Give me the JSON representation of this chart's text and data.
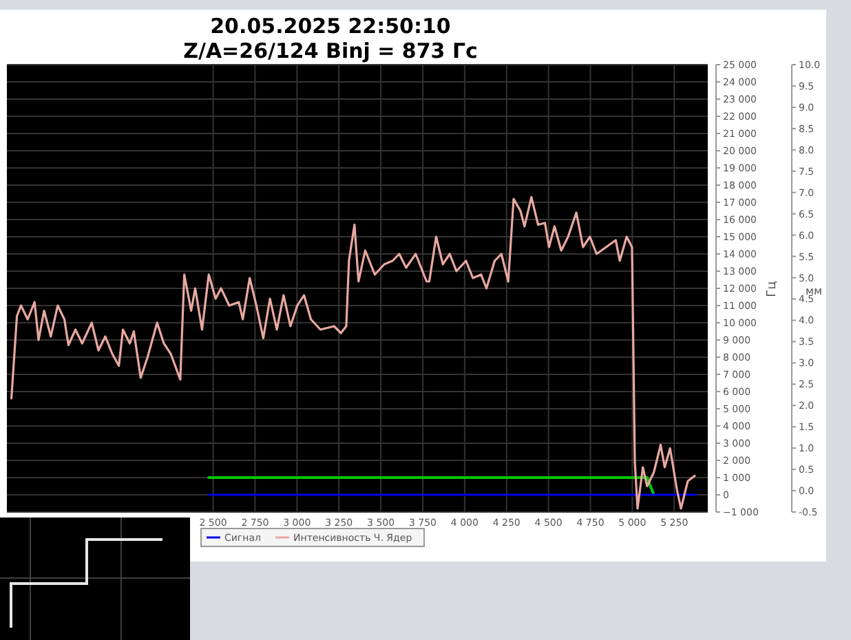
{
  "chart_data": [
    {
      "type": "line",
      "title": "20.05.2025 22:50:10",
      "subtitle": "Z/A=26/124  Binj = 873 Гс",
      "ylabel": "Гц",
      "y2label": "мм",
      "xlim": [
        1270,
        5450
      ],
      "xticks": [
        {
          "value": 2500,
          "label": "2 500"
        },
        {
          "value": 2750,
          "label": "2 750"
        },
        {
          "value": 3000,
          "label": "3 000"
        },
        {
          "value": 3250,
          "label": "3 250"
        },
        {
          "value": 3500,
          "label": "3 500"
        },
        {
          "value": 3750,
          "label": "3 750"
        },
        {
          "value": 4000,
          "label": "4 000"
        },
        {
          "value": 4250,
          "label": "4 250"
        },
        {
          "value": 4500,
          "label": "4 500"
        },
        {
          "value": 4750,
          "label": "4 750"
        },
        {
          "value": 5000,
          "label": "5 000"
        },
        {
          "value": 5250,
          "label": "5 250"
        }
      ],
      "ylim": [
        -1000,
        25000
      ],
      "yticks": [
        {
          "value": 25000,
          "label": "25 000"
        },
        {
          "value": 24000,
          "label": "24 000"
        },
        {
          "value": 23000,
          "label": "23 000"
        },
        {
          "value": 22000,
          "label": "22 000"
        },
        {
          "value": 21000,
          "label": "21 000"
        },
        {
          "value": 20000,
          "label": "20 000"
        },
        {
          "value": 19000,
          "label": "19 000"
        },
        {
          "value": 18000,
          "label": "18 000"
        },
        {
          "value": 17000,
          "label": "17 000"
        },
        {
          "value": 16000,
          "label": "16 000"
        },
        {
          "value": 15000,
          "label": "15 000"
        },
        {
          "value": 14000,
          "label": "14 000"
        },
        {
          "value": 13000,
          "label": "13 000"
        },
        {
          "value": 12000,
          "label": "12 000"
        },
        {
          "value": 11000,
          "label": "11 000"
        },
        {
          "value": 10000,
          "label": "10 000"
        },
        {
          "value": 9000,
          "label": "9 000"
        },
        {
          "value": 8000,
          "label": "8 000"
        },
        {
          "value": 7000,
          "label": "7 000"
        },
        {
          "value": 6000,
          "label": "6 000"
        },
        {
          "value": 5000,
          "label": "5 000"
        },
        {
          "value": 4000,
          "label": "4 000"
        },
        {
          "value": 3000,
          "label": "3 000"
        },
        {
          "value": 2000,
          "label": "2 000"
        },
        {
          "value": 1000,
          "label": "1 000"
        },
        0,
        {
          "value": -1000,
          "label": "−1 000"
        }
      ],
      "y2lim": [
        -0.5,
        10.0
      ],
      "y2ticks": [
        {
          "value": 10,
          "label": "10.0"
        },
        {
          "value": 9.5,
          "label": "9.5"
        },
        {
          "value": 9,
          "label": "9.0"
        },
        {
          "value": 8.5,
          "label": "8.5"
        },
        {
          "value": 8,
          "label": "8.0"
        },
        {
          "value": 7.5,
          "label": "7.5"
        },
        {
          "value": 7,
          "label": "7.0"
        },
        {
          "value": 6.5,
          "label": "6.5"
        },
        {
          "value": 6,
          "label": "6.0"
        },
        {
          "value": 5.5,
          "label": "5.5"
        },
        {
          "value": 5,
          "label": "5.0"
        },
        {
          "value": 4.5,
          "label": "4.5"
        },
        {
          "value": 4,
          "label": "4.0"
        },
        {
          "value": 3.5,
          "label": "3.5"
        },
        {
          "value": 3,
          "label": "3.0"
        },
        {
          "value": 2.5,
          "label": "2.5"
        },
        {
          "value": 2,
          "label": "2.0"
        },
        {
          "value": 1.5,
          "label": "1.5"
        },
        {
          "value": 1,
          "label": "1.0"
        },
        {
          "value": 0.5,
          "label": "0.5"
        },
        {
          "value": 0,
          "label": "0.0"
        },
        {
          "value": -0.5,
          "label": "-0.5"
        }
      ],
      "grid": true,
      "legend": "bottom",
      "series": [
        {
          "color": "#00c800",
          "x": [
            2474,
            5088,
            5128
          ],
          "values": [
            1000,
            1000,
            0
          ]
        },
        {
          "name": "Сигнал",
          "color": "#0000e6",
          "x": [
            2474,
            5380
          ],
          "values": [
            0,
            0
          ]
        },
        {
          "name": "Интенсивность Ч. Ядер",
          "color": "#e8a8a0",
          "x": [
            1297,
            1330,
            1354,
            1394,
            1435,
            1459,
            1492,
            1532,
            1573,
            1613,
            1637,
            1679,
            1719,
            1776,
            1816,
            1857,
            1898,
            1938,
            1962,
            2003,
            2027,
            2068,
            2109,
            2166,
            2206,
            2247,
            2304,
            2328,
            2369,
            2393,
            2434,
            2474,
            2515,
            2547,
            2596,
            2653,
            2677,
            2718,
            2758,
            2799,
            2839,
            2880,
            2920,
            2961,
            3002,
            3042,
            3083,
            3140,
            3221,
            3262,
            3294,
            3310,
            3343,
            3367,
            3407,
            3464,
            3521,
            3570,
            3610,
            3651,
            3708,
            3773,
            3789,
            3830,
            3870,
            3911,
            3951,
            4008,
            4049,
            4098,
            4130,
            4179,
            4219,
            4260,
            4292,
            4333,
            4357,
            4398,
            4438,
            4479,
            4503,
            4536,
            4576,
            4617,
            4666,
            4706,
            4747,
            4787,
            4844,
            4901,
            4925,
            4966,
            4998,
            5015,
            5031,
            5063,
            5088,
            5128,
            5169,
            5193,
            5225,
            5266,
            5290,
            5331,
            5372
          ],
          "values": [
            5600,
            10400,
            11000,
            10200,
            11200,
            9000,
            10700,
            9200,
            11000,
            10200,
            8700,
            9600,
            8800,
            10000,
            8400,
            9200,
            8200,
            7500,
            9600,
            8800,
            9500,
            6800,
            8000,
            10000,
            8800,
            8200,
            6700,
            12800,
            10700,
            12000,
            9600,
            12800,
            11400,
            12000,
            11000,
            11200,
            10200,
            12600,
            11000,
            9100,
            11400,
            9600,
            11600,
            9800,
            11000,
            11600,
            10200,
            9600,
            9800,
            9400,
            9800,
            13600,
            15700,
            12400,
            14200,
            12800,
            13400,
            13600,
            14000,
            13200,
            14000,
            12400,
            12400,
            15000,
            13400,
            14000,
            13000,
            13600,
            12600,
            12800,
            12000,
            13600,
            14000,
            12400,
            17200,
            16500,
            15600,
            17300,
            15700,
            15800,
            14400,
            15600,
            14200,
            15000,
            16400,
            14400,
            15000,
            14000,
            14400,
            14800,
            13600,
            15000,
            14400,
            1900,
            -800,
            1600,
            500,
            1300,
            2900,
            1600,
            2700,
            300,
            -800,
            800,
            1100
          ]
        }
      ]
    }
  ]
}
